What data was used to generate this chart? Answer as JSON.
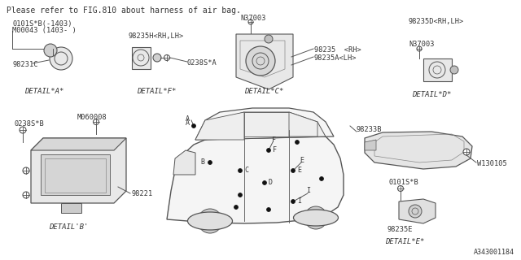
{
  "title": "Please refer to FIG.810 about harness of air bag.",
  "bg_color": "#ffffff",
  "fig_number": "A343001184",
  "text_color": "#333333",
  "line_color": "#555555",
  "font_size": 6.5,
  "detail_labels": {
    "A": "DETAIL*A*",
    "B": "DETAIL'B'",
    "C": "DETAIL*C*",
    "D": "DETAIL*D*",
    "E": "DETAIL*E*",
    "F": "DETAIL*F*"
  }
}
